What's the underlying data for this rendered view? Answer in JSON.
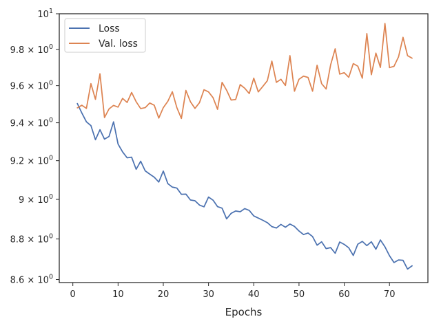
{
  "chart_data": {
    "type": "line",
    "title": "",
    "xlabel": "Epochs",
    "ylabel": "",
    "y_scale": "log",
    "xlim": [
      -3.0,
      78.5
    ],
    "ylim": [
      8.585,
      10.0
    ],
    "x_ticks": [
      0,
      10,
      20,
      30,
      40,
      50,
      60,
      70
    ],
    "x_tick_labels": [
      "0",
      "10",
      "20",
      "30",
      "40",
      "50",
      "60",
      "70"
    ],
    "y_ticks": [
      8.6,
      8.8,
      9.0,
      9.2,
      9.4,
      9.6,
      9.8,
      10.0
    ],
    "y_tick_labels": [
      {
        "base": "8.6 × 10",
        "exp": "0"
      },
      {
        "base": "8.8 × 10",
        "exp": "0"
      },
      {
        "base": "9 × 10",
        "exp": "0"
      },
      {
        "base": "9.2 × 10",
        "exp": "0"
      },
      {
        "base": "9.4 × 10",
        "exp": "0"
      },
      {
        "base": "9.6 × 10",
        "exp": "0"
      },
      {
        "base": "9.8 × 10",
        "exp": "0"
      },
      {
        "base": "10",
        "exp": "1"
      }
    ],
    "legend_position": "upper left",
    "grid": false,
    "x": [
      1,
      2,
      3,
      4,
      5,
      6,
      7,
      8,
      9,
      10,
      11,
      12,
      13,
      14,
      15,
      16,
      17,
      18,
      19,
      20,
      21,
      22,
      23,
      24,
      25,
      26,
      27,
      28,
      29,
      30,
      31,
      32,
      33,
      34,
      35,
      36,
      37,
      38,
      39,
      40,
      41,
      42,
      43,
      44,
      45,
      46,
      47,
      48,
      49,
      50,
      51,
      52,
      53,
      54,
      55,
      56,
      57,
      58,
      59,
      60,
      61,
      62,
      63,
      64,
      65,
      66,
      67,
      68,
      69,
      70,
      71,
      72,
      73,
      74,
      75
    ],
    "series": [
      {
        "name": "Loss",
        "color": "#4c72b0",
        "values": [
          9.503,
          9.452,
          9.405,
          9.385,
          9.31,
          9.363,
          9.313,
          9.327,
          9.405,
          9.287,
          9.246,
          9.215,
          9.218,
          9.155,
          9.197,
          9.147,
          9.13,
          9.114,
          9.089,
          9.146,
          9.081,
          9.063,
          9.058,
          9.026,
          9.027,
          8.997,
          8.993,
          8.971,
          8.962,
          9.012,
          8.996,
          8.963,
          8.955,
          8.901,
          8.929,
          8.941,
          8.937,
          8.953,
          8.944,
          8.916,
          8.905,
          8.894,
          8.882,
          8.862,
          8.855,
          8.873,
          8.859,
          8.875,
          8.863,
          8.84,
          8.822,
          8.83,
          8.812,
          8.769,
          8.786,
          8.752,
          8.757,
          8.729,
          8.785,
          8.773,
          8.756,
          8.718,
          8.774,
          8.788,
          8.767,
          8.786,
          8.749,
          8.795,
          8.761,
          8.717,
          8.683,
          8.696,
          8.694,
          8.651,
          8.667
        ]
      },
      {
        "name": "Val. loss",
        "color": "#dd8452",
        "values": [
          9.48,
          9.494,
          9.477,
          9.611,
          9.526,
          9.665,
          9.428,
          9.474,
          9.493,
          9.484,
          9.531,
          9.509,
          9.563,
          9.513,
          9.476,
          9.481,
          9.506,
          9.494,
          9.425,
          9.481,
          9.515,
          9.567,
          9.481,
          9.423,
          9.574,
          9.513,
          9.477,
          9.508,
          9.578,
          9.566,
          9.535,
          9.472,
          9.618,
          9.575,
          9.522,
          9.525,
          9.606,
          9.586,
          9.557,
          9.641,
          9.566,
          9.596,
          9.627,
          9.735,
          9.618,
          9.635,
          9.601,
          9.765,
          9.57,
          9.635,
          9.652,
          9.645,
          9.57,
          9.712,
          9.611,
          9.582,
          9.715,
          9.803,
          9.663,
          9.671,
          9.646,
          9.721,
          9.707,
          9.641,
          9.888,
          9.66,
          9.779,
          9.7,
          9.945,
          9.699,
          9.706,
          9.758,
          9.867,
          9.765,
          9.751
        ]
      }
    ]
  }
}
